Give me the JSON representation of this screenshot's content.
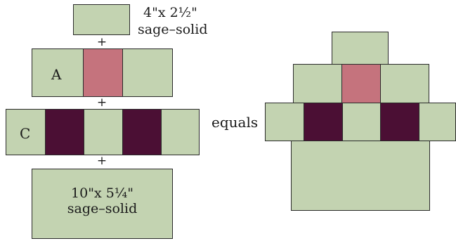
{
  "left_diagram": {
    "top_block": {
      "label_line1": "4\"x 2½\"",
      "label_line2": "sage–solid"
    },
    "plus_1": "+",
    "row_a": {
      "label": "A"
    },
    "plus_2": "+",
    "row_c": {
      "label": "C"
    },
    "plus_3": "+",
    "bottom_block": {
      "label_line1": "10\"x 5¼\"",
      "label_line2": "sage–solid"
    }
  },
  "equals_label": "equals",
  "colors": {
    "sage": "#c3d3b1",
    "rose": "#c5737d",
    "plum": "#4b0f34",
    "outline": "#2a2a2a"
  }
}
